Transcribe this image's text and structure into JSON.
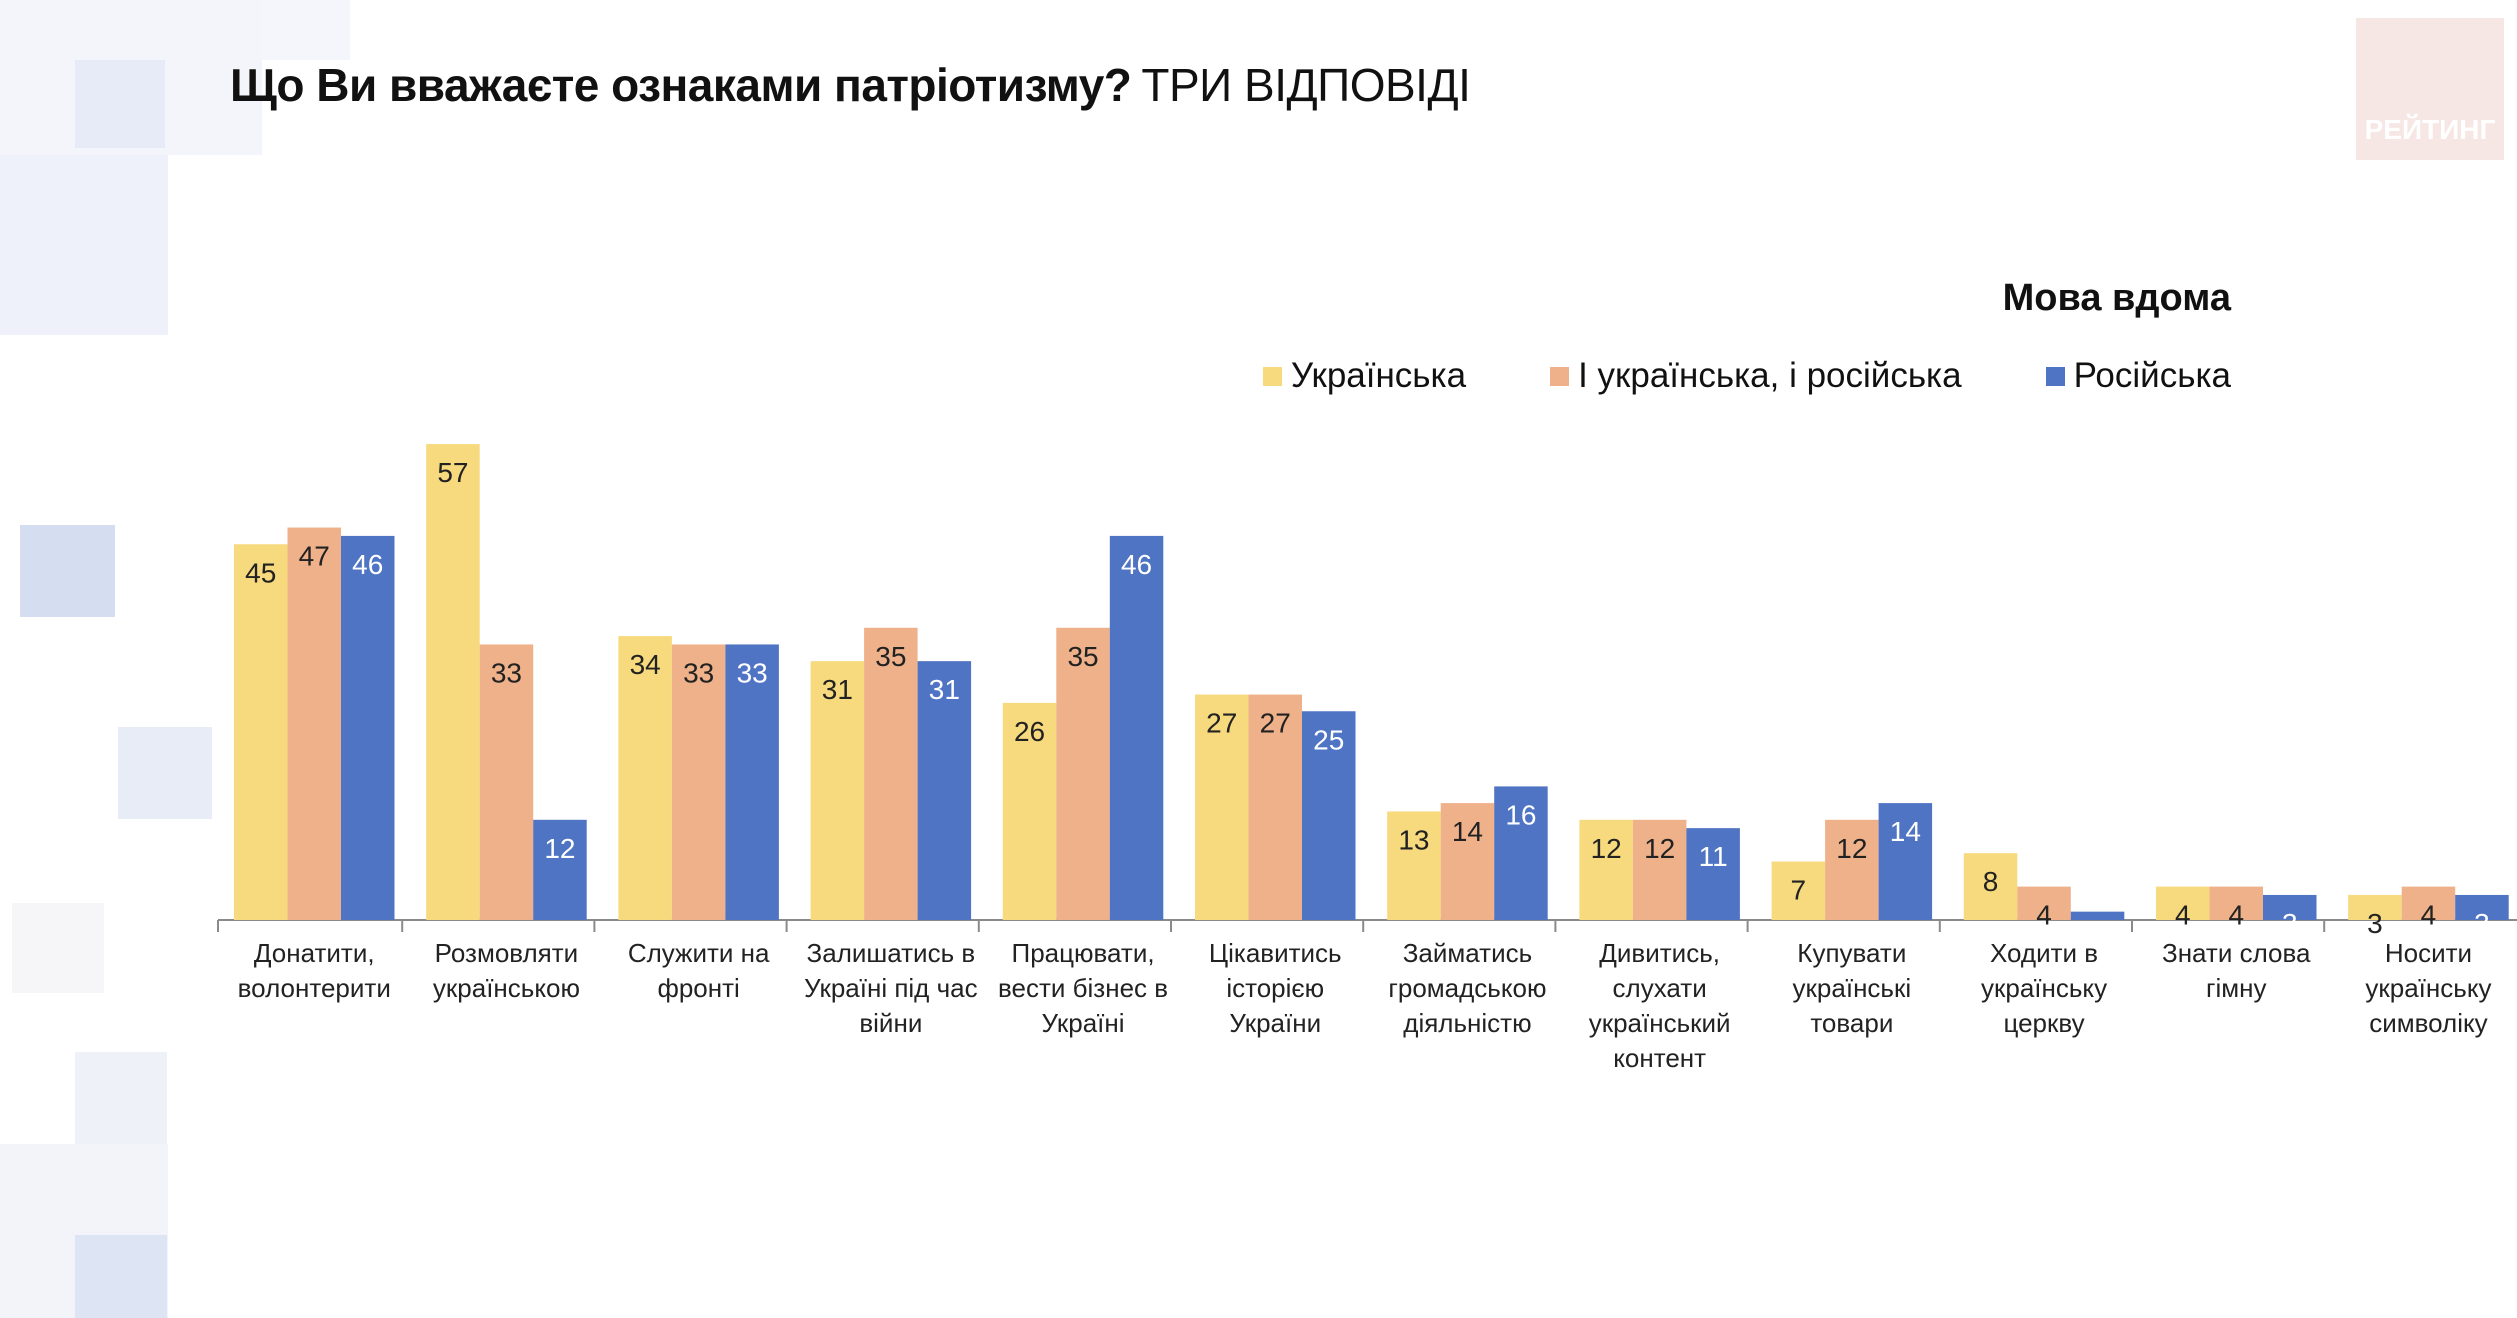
{
  "title": {
    "question": "Що Ви вважаєте ознаками патріотизму?",
    "note": "ТРИ ВІДПОВІДІ"
  },
  "logo": {
    "text": "РЕЙТИНГ"
  },
  "legend": {
    "title": "Мова вдома",
    "items": [
      {
        "label": "Українська",
        "color": "#f6da7d"
      },
      {
        "label": "І українська, і російська",
        "color": "#eeb18a"
      },
      {
        "label": "Російська",
        "color": "#4f74c4"
      }
    ]
  },
  "chart_data": {
    "type": "bar",
    "title": "Що Ви вважаєте ознаками патріотизму? ТРИ ВІДПОВІДІ",
    "xlabel": "",
    "ylabel": "",
    "ylim": [
      0,
      60
    ],
    "grid": false,
    "legend_position": "top-right",
    "categories": [
      "Донатити, волонтерити",
      "Розмовляти українською",
      "Служити на фронті",
      "Залишатись в Україні під час війни",
      "Працювати, вести бізнес в Україні",
      "Цікавитись історією України",
      "Займатись громадською діяльністю",
      "Дивитись, слухати український контент",
      "Купувати українські товари",
      "Ходити в українську церкву",
      "Знати слова гімну",
      "Носити українську символіку"
    ],
    "series": [
      {
        "name": "Українська",
        "color": "#f6da7d",
        "values": [
          45,
          57,
          34,
          31,
          26,
          27,
          13,
          12,
          7,
          8,
          4,
          3
        ]
      },
      {
        "name": "І українська, і російська",
        "color": "#eeb18a",
        "values": [
          47,
          33,
          33,
          35,
          35,
          27,
          14,
          12,
          12,
          4,
          4,
          4
        ]
      },
      {
        "name": "Російська",
        "color": "#4f74c4",
        "values": [
          46,
          12,
          33,
          31,
          46,
          25,
          16,
          11,
          14,
          1,
          3,
          3
        ]
      }
    ]
  }
}
